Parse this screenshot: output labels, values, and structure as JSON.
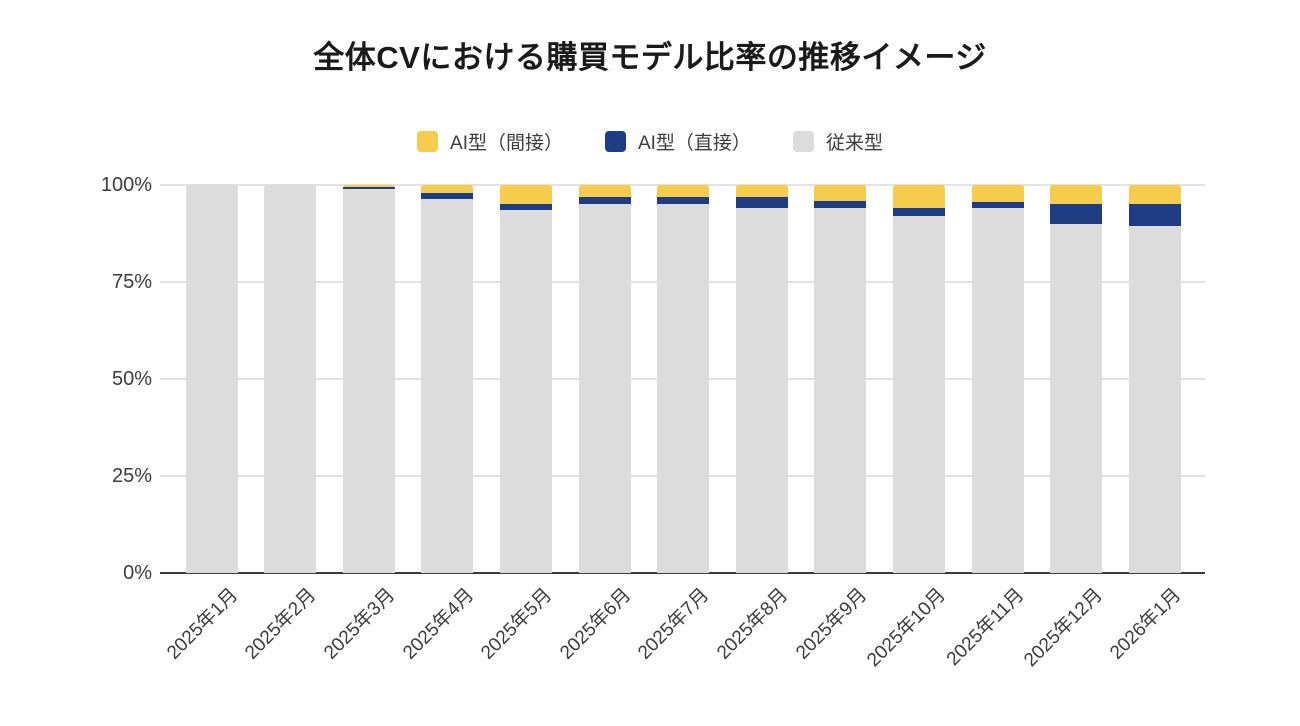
{
  "title": "全体CVにおける購買モデル比率の推移イメージ",
  "legend": {
    "position": "top",
    "items": [
      {
        "label": "AI型（間接）",
        "color": "#F6CC4D"
      },
      {
        "label": "AI型（直接）",
        "color": "#1F3D84"
      },
      {
        "label": "従来型",
        "color": "#DCDCDC"
      }
    ]
  },
  "chart_data": {
    "type": "bar",
    "subtype": "stacked-percentage",
    "title": "全体CVにおける購買モデル比率の推移イメージ",
    "categories": [
      "2025年1月",
      "2025年2月",
      "2025年3月",
      "2025年4月",
      "2025年5月",
      "2025年6月",
      "2025年7月",
      "2025年8月",
      "2025年9月",
      "2025年10月",
      "2025年11月",
      "2025年12月",
      "2026年1月"
    ],
    "series": [
      {
        "name": "AI型（間接）",
        "color": "#F6CC4D",
        "values": [
          0,
          0,
          0.5,
          2,
          5,
          3,
          3,
          3,
          4,
          6,
          4.5,
          5,
          5
        ]
      },
      {
        "name": "AI型（直接）",
        "color": "#1F3D84",
        "values": [
          0,
          0,
          0.5,
          1.5,
          1.5,
          2,
          2,
          3,
          2,
          2,
          1.5,
          5,
          5.5
        ]
      },
      {
        "name": "従来型",
        "color": "#DCDCDC",
        "values": [
          100,
          100,
          99,
          96.5,
          93.5,
          95,
          95,
          94,
          94,
          92,
          94,
          90,
          89.5
        ]
      }
    ],
    "stack_order_bottom_to_top": [
      "従来型",
      "AI型（直接）",
      "AI型（間接）"
    ],
    "y_axis": {
      "min": 0,
      "max": 100,
      "ticks": [
        {
          "label": "100%",
          "value": 100
        },
        {
          "label": "75%",
          "value": 75
        },
        {
          "label": "50%",
          "value": 50
        },
        {
          "label": "25%",
          "value": 25
        },
        {
          "label": "0%",
          "value": 0
        }
      ],
      "grid": true
    },
    "x_axis": {
      "label_rotation_deg": -45
    },
    "legend_position": "top",
    "colors": {
      "gridline": "#e2e2e2",
      "baseline": "#3a3a3a",
      "axis_text": "#3c3c3c",
      "title_text": "#1a1a1a",
      "background": "#ffffff"
    }
  }
}
